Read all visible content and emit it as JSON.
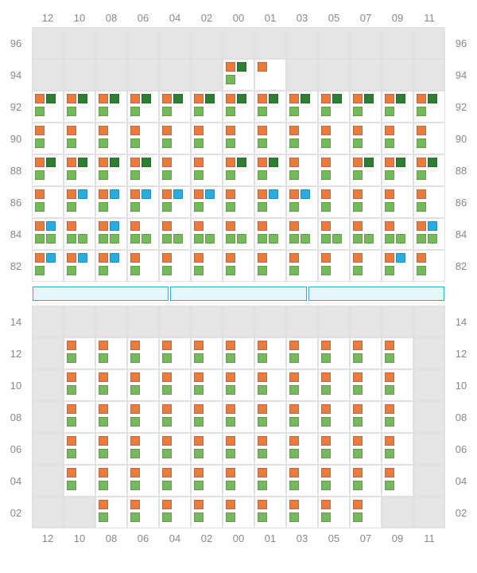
{
  "colors": {
    "orange": "#e87b3e",
    "green_light": "#76b95b",
    "green_dark": "#2e7d32",
    "blue": "#29abe2",
    "empty_bg": "#e5e5e5",
    "filled_bg": "#ffffff",
    "border": "#e0e0e0",
    "label": "#888888",
    "divider_border": "#29abe2",
    "divider_fill": "#e6f6fd"
  },
  "col_labels": [
    "12",
    "10",
    "08",
    "06",
    "04",
    "02",
    "00",
    "01",
    "03",
    "05",
    "07",
    "09",
    "11"
  ],
  "top_section": {
    "row_labels": [
      "96",
      "94",
      "92",
      "90",
      "88",
      "86",
      "84",
      "82"
    ],
    "rows": [
      [
        null,
        null,
        null,
        null,
        null,
        null,
        null,
        null,
        null,
        null,
        null,
        null,
        null
      ],
      [
        null,
        null,
        null,
        null,
        null,
        null,
        {
          "tl": "orange",
          "tr": "green_dark",
          "bl": "green_light"
        },
        {
          "tl": "orange"
        },
        null,
        null,
        null,
        null,
        null
      ],
      [
        {
          "tl": "orange",
          "tr": "green_dark",
          "bl": "green_light"
        },
        {
          "tl": "orange",
          "tr": "green_dark",
          "bl": "green_light"
        },
        {
          "tl": "orange",
          "tr": "green_dark",
          "bl": "green_light"
        },
        {
          "tl": "orange",
          "tr": "green_dark",
          "bl": "green_light"
        },
        {
          "tl": "orange",
          "tr": "green_dark",
          "bl": "green_light"
        },
        {
          "tl": "orange",
          "tr": "green_dark",
          "bl": "green_light"
        },
        {
          "tl": "orange",
          "tr": "green_dark",
          "bl": "green_light"
        },
        {
          "tl": "orange",
          "tr": "green_dark",
          "bl": "green_light"
        },
        {
          "tl": "orange",
          "tr": "green_dark",
          "bl": "green_light"
        },
        {
          "tl": "orange",
          "tr": "green_dark",
          "bl": "green_light"
        },
        {
          "tl": "orange",
          "tr": "green_dark",
          "bl": "green_light"
        },
        {
          "tl": "orange",
          "tr": "green_dark",
          "bl": "green_light"
        },
        {
          "tl": "orange",
          "tr": "green_dark",
          "bl": "green_light"
        }
      ],
      [
        {
          "tl": "orange",
          "bl": "green_light"
        },
        {
          "tl": "orange",
          "bl": "green_light"
        },
        {
          "tl": "orange",
          "bl": "green_light"
        },
        {
          "tl": "orange",
          "bl": "green_light"
        },
        {
          "tl": "orange",
          "bl": "green_light"
        },
        {
          "tl": "orange",
          "bl": "green_light"
        },
        {
          "tl": "orange",
          "bl": "green_light"
        },
        {
          "tl": "orange",
          "bl": "green_light"
        },
        {
          "tl": "orange",
          "bl": "green_light"
        },
        {
          "tl": "orange",
          "bl": "green_light"
        },
        {
          "tl": "orange",
          "bl": "green_light"
        },
        {
          "tl": "orange",
          "bl": "green_light"
        },
        {
          "tl": "orange",
          "bl": "green_light"
        }
      ],
      [
        {
          "tl": "orange",
          "tr": "green_dark",
          "bl": "green_light"
        },
        {
          "tl": "orange",
          "tr": "green_dark",
          "bl": "green_light"
        },
        {
          "tl": "orange",
          "tr": "green_dark",
          "bl": "green_light"
        },
        {
          "tl": "orange",
          "tr": "green_dark",
          "bl": "green_light"
        },
        {
          "tl": "orange",
          "bl": "green_light"
        },
        {
          "tl": "orange",
          "bl": "green_light"
        },
        {
          "tl": "orange",
          "tr": "green_dark",
          "bl": "green_light"
        },
        {
          "tl": "orange",
          "tr": "green_dark",
          "bl": "green_light"
        },
        {
          "tl": "orange",
          "bl": "green_light"
        },
        {
          "tl": "orange",
          "bl": "green_light"
        },
        {
          "tl": "orange",
          "tr": "green_dark",
          "bl": "green_light"
        },
        {
          "tl": "orange",
          "tr": "green_dark",
          "bl": "green_light"
        },
        {
          "tl": "orange",
          "tr": "green_dark",
          "bl": "green_light"
        }
      ],
      [
        {
          "tl": "orange",
          "bl": "green_light"
        },
        {
          "tl": "orange",
          "tr": "blue",
          "bl": "green_light"
        },
        {
          "tl": "orange",
          "tr": "blue",
          "bl": "green_light"
        },
        {
          "tl": "orange",
          "tr": "blue",
          "bl": "green_light"
        },
        {
          "tl": "orange",
          "tr": "blue",
          "bl": "green_light"
        },
        {
          "tl": "orange",
          "tr": "blue",
          "bl": "green_light"
        },
        {
          "tl": "orange",
          "bl": "green_light"
        },
        {
          "tl": "orange",
          "tr": "blue",
          "bl": "green_light"
        },
        {
          "tl": "orange",
          "tr": "blue",
          "bl": "green_light"
        },
        {
          "tl": "orange",
          "bl": "green_light"
        },
        {
          "tl": "orange",
          "bl": "green_light"
        },
        {
          "tl": "orange",
          "bl": "green_light"
        },
        {
          "tl": "orange",
          "bl": "green_light"
        }
      ],
      [
        {
          "tl": "orange",
          "tr": "blue",
          "bl": "green_light",
          "br": "green_light"
        },
        {
          "tl": "orange",
          "bl": "green_light",
          "br": "green_light"
        },
        {
          "tl": "orange",
          "tr": "blue",
          "bl": "green_light",
          "br": "green_light"
        },
        {
          "tl": "orange",
          "bl": "green_light",
          "br": "green_light"
        },
        {
          "tl": "orange",
          "bl": "green_light",
          "br": "green_light"
        },
        {
          "tl": "orange",
          "bl": "green_light",
          "br": "green_light"
        },
        {
          "tl": "orange",
          "bl": "green_light",
          "br": "green_light"
        },
        {
          "tl": "orange",
          "bl": "green_light",
          "br": "green_light"
        },
        {
          "tl": "orange",
          "bl": "green_light",
          "br": "green_light"
        },
        {
          "tl": "orange",
          "bl": "green_light",
          "br": "green_light"
        },
        {
          "tl": "orange",
          "bl": "green_light",
          "br": "green_light"
        },
        {
          "tl": "orange",
          "bl": "green_light",
          "br": "green_light"
        },
        {
          "tl": "orange",
          "tr": "blue",
          "bl": "green_light",
          "br": "green_light"
        }
      ],
      [
        {
          "tl": "orange",
          "tr": "blue",
          "bl": "green_light"
        },
        {
          "tl": "orange",
          "tr": "blue",
          "bl": "green_light"
        },
        {
          "tl": "orange",
          "tr": "blue",
          "bl": "green_light"
        },
        {
          "tl": "orange",
          "bl": "green_light"
        },
        {
          "tl": "orange",
          "bl": "green_light"
        },
        {
          "tl": "orange",
          "bl": "green_light"
        },
        {
          "tl": "orange",
          "bl": "green_light"
        },
        {
          "tl": "orange",
          "bl": "green_light"
        },
        {
          "tl": "orange",
          "bl": "green_light"
        },
        {
          "tl": "orange",
          "bl": "green_light"
        },
        {
          "tl": "orange",
          "bl": "green_light"
        },
        {
          "tl": "orange",
          "tr": "blue",
          "bl": "green_light"
        },
        {
          "tl": "orange",
          "bl": "green_light"
        }
      ]
    ]
  },
  "divider_segments": 3,
  "bottom_section": {
    "row_labels": [
      "14",
      "12",
      "10",
      "08",
      "06",
      "04",
      "02"
    ],
    "rows": [
      [
        null,
        null,
        null,
        null,
        null,
        null,
        null,
        null,
        null,
        null,
        null,
        null,
        null
      ],
      [
        null,
        {
          "tl": "orange",
          "bl": "green_light"
        },
        {
          "tl": "orange",
          "bl": "green_light"
        },
        {
          "tl": "orange",
          "bl": "green_light"
        },
        {
          "tl": "orange",
          "bl": "green_light"
        },
        {
          "tl": "orange",
          "bl": "green_light"
        },
        {
          "tl": "orange",
          "bl": "green_light"
        },
        {
          "tl": "orange",
          "bl": "green_light"
        },
        {
          "tl": "orange",
          "bl": "green_light"
        },
        {
          "tl": "orange",
          "bl": "green_light"
        },
        {
          "tl": "orange",
          "bl": "green_light"
        },
        {
          "tl": "orange",
          "bl": "green_light"
        },
        null
      ],
      [
        null,
        {
          "tl": "orange",
          "bl": "green_light"
        },
        {
          "tl": "orange",
          "bl": "green_light"
        },
        {
          "tl": "orange",
          "bl": "green_light"
        },
        {
          "tl": "orange",
          "bl": "green_light"
        },
        {
          "tl": "orange",
          "bl": "green_light"
        },
        {
          "tl": "orange",
          "bl": "green_light"
        },
        {
          "tl": "orange",
          "bl": "green_light"
        },
        {
          "tl": "orange",
          "bl": "green_light"
        },
        {
          "tl": "orange",
          "bl": "green_light"
        },
        {
          "tl": "orange",
          "bl": "green_light"
        },
        {
          "tl": "orange",
          "bl": "green_light"
        },
        null
      ],
      [
        null,
        {
          "tl": "orange",
          "bl": "green_light"
        },
        {
          "tl": "orange",
          "bl": "green_light"
        },
        {
          "tl": "orange",
          "bl": "green_light"
        },
        {
          "tl": "orange",
          "bl": "green_light"
        },
        {
          "tl": "orange",
          "bl": "green_light"
        },
        {
          "tl": "orange",
          "bl": "green_light"
        },
        {
          "tl": "orange",
          "bl": "green_light"
        },
        {
          "tl": "orange",
          "bl": "green_light"
        },
        {
          "tl": "orange",
          "bl": "green_light"
        },
        {
          "tl": "orange",
          "bl": "green_light"
        },
        {
          "tl": "orange",
          "bl": "green_light"
        },
        null
      ],
      [
        null,
        {
          "tl": "orange",
          "bl": "green_light"
        },
        {
          "tl": "orange",
          "bl": "green_light"
        },
        {
          "tl": "orange",
          "bl": "green_light"
        },
        {
          "tl": "orange",
          "bl": "green_light"
        },
        {
          "tl": "orange",
          "bl": "green_light"
        },
        {
          "tl": "orange",
          "bl": "green_light"
        },
        {
          "tl": "orange",
          "bl": "green_light"
        },
        {
          "tl": "orange",
          "bl": "green_light"
        },
        {
          "tl": "orange",
          "bl": "green_light"
        },
        {
          "tl": "orange",
          "bl": "green_light"
        },
        {
          "tl": "orange",
          "bl": "green_light"
        },
        null
      ],
      [
        null,
        {
          "tl": "orange",
          "bl": "green_light"
        },
        {
          "tl": "orange",
          "bl": "green_light"
        },
        {
          "tl": "orange",
          "bl": "green_light"
        },
        {
          "tl": "orange",
          "bl": "green_light"
        },
        {
          "tl": "orange",
          "bl": "green_light"
        },
        {
          "tl": "orange",
          "bl": "green_light"
        },
        {
          "tl": "orange",
          "bl": "green_light"
        },
        {
          "tl": "orange",
          "bl": "green_light"
        },
        {
          "tl": "orange",
          "bl": "green_light"
        },
        {
          "tl": "orange",
          "bl": "green_light"
        },
        {
          "tl": "orange",
          "bl": "green_light"
        },
        null
      ],
      [
        null,
        null,
        {
          "tl": "orange",
          "bl": "green_light"
        },
        {
          "tl": "orange",
          "bl": "green_light"
        },
        {
          "tl": "orange",
          "bl": "green_light"
        },
        {
          "tl": "orange",
          "bl": "green_light"
        },
        {
          "tl": "orange",
          "bl": "green_light"
        },
        {
          "tl": "orange",
          "bl": "green_light"
        },
        {
          "tl": "orange",
          "bl": "green_light"
        },
        {
          "tl": "orange",
          "bl": "green_light"
        },
        {
          "tl": "orange",
          "bl": "green_light"
        },
        null,
        null
      ]
    ]
  }
}
